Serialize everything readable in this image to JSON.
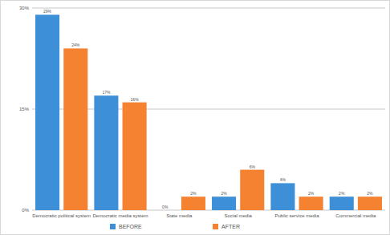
{
  "chart_data": {
    "type": "bar",
    "categories": [
      "Democratic political system",
      "Democratic media system",
      "State media",
      "Social media",
      "Public service media",
      "Commercial media"
    ],
    "series": [
      {
        "name": "BEFORE",
        "color": "#3d8fd8",
        "values": [
          29,
          17,
          0,
          2,
          4,
          2
        ],
        "value_labels": [
          "29%",
          "17%",
          "0%",
          "2%",
          "4%",
          "2%"
        ]
      },
      {
        "name": "AFTER",
        "color": "#f58230",
        "values": [
          24,
          16,
          2,
          6,
          2,
          2
        ],
        "value_labels": [
          "24%",
          "16%",
          "2%",
          "6%",
          "2%",
          "2%"
        ]
      }
    ],
    "ylim": [
      0,
      30
    ],
    "yticks": [
      {
        "value": 0,
        "label": "0%"
      },
      {
        "value": 15,
        "label": "15%"
      },
      {
        "value": 30,
        "label": "30%"
      }
    ],
    "grid": true,
    "legend": "bottom",
    "data_labels": true
  }
}
